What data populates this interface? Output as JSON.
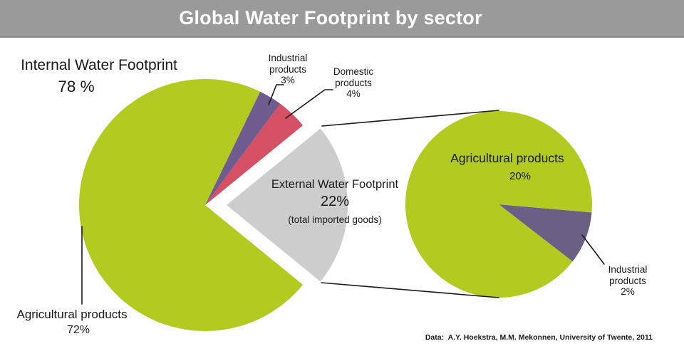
{
  "header": {
    "title": "Global Water Footprint by sector"
  },
  "footer": {
    "credit": "Data:  A.Y. Hoekstra, M.M. Mekonnen, University of Twente, 2011"
  },
  "colors": {
    "header_bg": "#9a9a9a",
    "header_border": "#8a8a8a",
    "title_text": "#ffffff",
    "text": "#1a1a1a",
    "background": "#ffffff",
    "line": "#1a1a1a",
    "green": "#b2cb20",
    "purple_internal": "#6f5c8e",
    "red": "#d55064",
    "gray_wedge": "#cdcdcd",
    "purple_external": "#6c5f86"
  },
  "chart_data": [
    {
      "type": "pie",
      "name": "internal-water-footprint",
      "title": "Internal Water Footprint",
      "title_pct": "78 %",
      "legend": "none",
      "slices": [
        {
          "label": "Agricultural products",
          "value": 72,
          "pct_label": "72%",
          "color": "#b2cb20"
        },
        {
          "label": "Industrial products",
          "value": 3,
          "pct_label": "3%",
          "color": "#6f5c8e"
        },
        {
          "label": "Domestic products",
          "value": 4,
          "pct_label": "4%",
          "color": "#d55064"
        },
        {
          "label": "External Water Footprint",
          "value": 22,
          "pct_label": "22%",
          "note": "(total imported goods)",
          "color": "#cdcdcd",
          "exploded": true
        }
      ]
    },
    {
      "type": "pie",
      "name": "external-water-footprint-breakdown",
      "legend": "none",
      "slices": [
        {
          "label": "Agricultural products",
          "value": 20,
          "pct_label": "20%",
          "color": "#b2cb20"
        },
        {
          "label": "Industrial products",
          "value": 2,
          "pct_label": "2%",
          "color": "#6c5f86"
        }
      ]
    }
  ]
}
